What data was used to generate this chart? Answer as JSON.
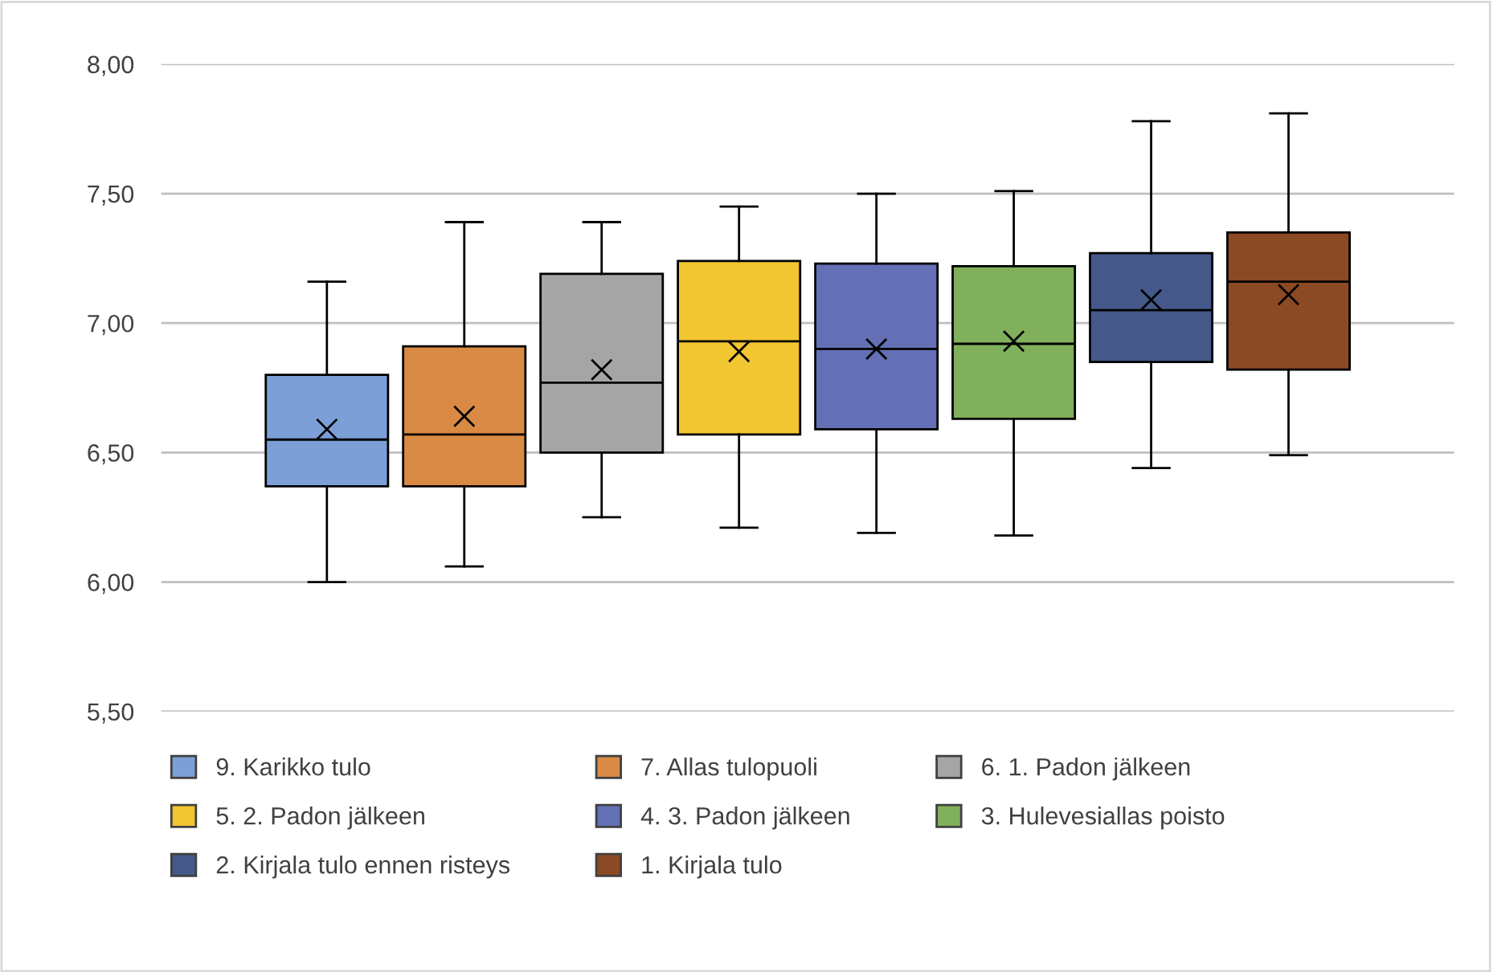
{
  "chart_data": {
    "type": "box",
    "categories": [
      null
    ],
    "ylim": [
      5.5,
      8.0
    ],
    "yticks": [
      {
        "value": 5.5,
        "label": "5,50"
      },
      {
        "value": 6.0,
        "label": "6,00"
      },
      {
        "value": 6.5,
        "label": "6,50"
      },
      {
        "value": 7.0,
        "label": "7,00"
      },
      {
        "value": 7.5,
        "label": "7,50"
      },
      {
        "value": 8.0,
        "label": "8,00"
      }
    ],
    "grid": "y",
    "legend": "bottom",
    "marker": "cross",
    "series": [
      {
        "name": "9. Karikko tulo",
        "color": "#7b9fd6",
        "boxes": [
          {
            "low": 6.0,
            "q1": 6.37,
            "median": 6.55,
            "q3": 6.8,
            "high": 7.16,
            "mean": 6.59
          }
        ]
      },
      {
        "name": "7. Allas tulopuoli",
        "color": "#d98a45",
        "boxes": [
          {
            "low": 6.06,
            "q1": 6.37,
            "median": 6.57,
            "q3": 6.91,
            "high": 7.39,
            "mean": 6.64
          }
        ]
      },
      {
        "name": "6. 1. Padon jälkeen",
        "color": "#a5a5a5",
        "boxes": [
          {
            "low": 6.25,
            "q1": 6.5,
            "median": 6.77,
            "q3": 7.19,
            "high": 7.39,
            "mean": 6.82
          }
        ]
      },
      {
        "name": "5. 2. Padon jälkeen",
        "color": "#f2c631",
        "boxes": [
          {
            "low": 6.21,
            "q1": 6.57,
            "median": 6.93,
            "q3": 7.24,
            "high": 7.45,
            "mean": 6.89
          }
        ]
      },
      {
        "name": "4. 3. Padon jälkeen",
        "color": "#6470b5",
        "boxes": [
          {
            "low": 6.19,
            "q1": 6.59,
            "median": 6.9,
            "q3": 7.23,
            "high": 7.5,
            "mean": 6.9
          }
        ]
      },
      {
        "name": "3. Hulevesiallas poisto",
        "color": "#80b05b",
        "boxes": [
          {
            "low": 6.18,
            "q1": 6.63,
            "median": 6.92,
            "q3": 7.22,
            "high": 7.51,
            "mean": 6.93
          }
        ]
      },
      {
        "name": "2. Kirjala tulo ennen risteys",
        "color": "#44598a",
        "boxes": [
          {
            "low": 6.44,
            "q1": 6.85,
            "median": 7.05,
            "q3": 7.27,
            "high": 7.78,
            "mean": 7.09
          }
        ]
      },
      {
        "name": "1. Kirjala tulo",
        "color": "#8b4a23",
        "boxes": [
          {
            "low": 6.49,
            "q1": 6.82,
            "median": 7.16,
            "q3": 7.35,
            "high": 7.81,
            "mean": 7.11
          }
        ]
      }
    ]
  }
}
